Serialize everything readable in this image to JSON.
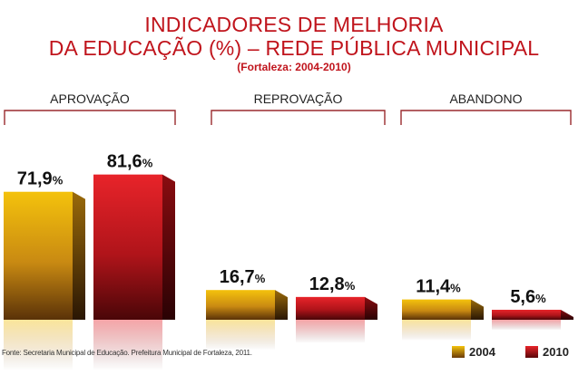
{
  "title_line1": "INDICADORES DE MELHORIA",
  "title_line2": "DA EDUCAÇÃO (%) – REDE PÚBLICA MUNICIPAL",
  "subtitle": "(Fortaleza: 2004-2010)",
  "source": "Fonte: Secretaria Municipal de Educação. Prefeitura Municipal de Fortaleza, 2011.",
  "colors": {
    "title": "#c0141c",
    "series_2004": "#e0a020",
    "series_2010": "#d4141c"
  },
  "chart_data": {
    "type": "bar",
    "title": "INDICADORES DE MELHORIA DA EDUCAÇÃO (%) – REDE PÚBLICA MUNICIPAL",
    "subtitle": "(Fortaleza: 2004-2010)",
    "categories": [
      "APROVAÇÃO",
      "REPROVAÇÃO",
      "ABANDONO"
    ],
    "series": [
      {
        "name": "2004",
        "values": [
          71.9,
          16.7,
          11.4
        ],
        "labels": [
          "71,9",
          "16,7",
          "11,4"
        ]
      },
      {
        "name": "2010",
        "values": [
          81.6,
          12.8,
          5.6
        ],
        "labels": [
          "81,6",
          "12,8",
          "5,6"
        ]
      }
    ],
    "unit_label": "%",
    "ylim": [
      0,
      100
    ],
    "legend_position": "bottom-right"
  }
}
